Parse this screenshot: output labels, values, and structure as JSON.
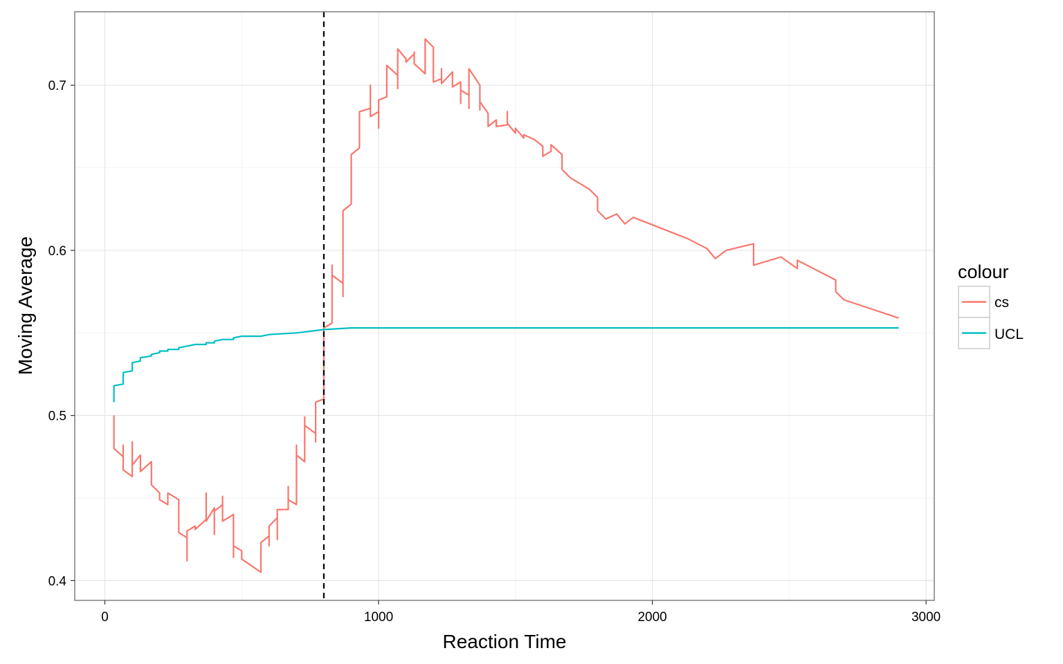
{
  "chart_data": {
    "type": "line",
    "xlabel": "Reaction Time",
    "ylabel": "Moving Average",
    "xlim": [
      -110,
      3030
    ],
    "ylim": [
      0.388,
      0.7445
    ],
    "x_ticks": [
      0,
      1000,
      2000,
      3000
    ],
    "x_tick_labels": [
      "0",
      "1000",
      "2000",
      "3000"
    ],
    "y_ticks": [
      0.4,
      0.5,
      0.6,
      0.7
    ],
    "y_tick_labels": [
      "0.4",
      "0.5",
      "0.6",
      "0.7"
    ],
    "grid": true,
    "legend": {
      "title": "colour",
      "position": "right"
    },
    "reference_line": {
      "x": 800,
      "style": "dashed",
      "color": "#000000"
    },
    "series": [
      {
        "name": "cs",
        "color": "#F8766D",
        "points": [
          [
            33,
            0.5
          ],
          [
            33,
            0.48
          ],
          [
            67,
            0.475
          ],
          [
            67,
            0.482
          ],
          [
            67,
            0.467
          ],
          [
            100,
            0.463
          ],
          [
            100,
            0.484
          ],
          [
            100,
            0.47
          ],
          [
            130,
            0.476
          ],
          [
            130,
            0.466
          ],
          [
            170,
            0.472
          ],
          [
            170,
            0.458
          ],
          [
            200,
            0.453
          ],
          [
            200,
            0.449
          ],
          [
            230,
            0.446
          ],
          [
            230,
            0.453
          ],
          [
            270,
            0.449
          ],
          [
            270,
            0.429
          ],
          [
            300,
            0.426
          ],
          [
            300,
            0.412
          ],
          [
            300,
            0.43
          ],
          [
            330,
            0.433
          ],
          [
            330,
            0.431
          ],
          [
            370,
            0.437
          ],
          [
            370,
            0.453
          ],
          [
            370,
            0.436
          ],
          [
            400,
            0.444
          ],
          [
            400,
            0.428
          ],
          [
            400,
            0.442
          ],
          [
            430,
            0.446
          ],
          [
            430,
            0.451
          ],
          [
            430,
            0.436
          ],
          [
            470,
            0.44
          ],
          [
            470,
            0.414
          ],
          [
            470,
            0.421
          ],
          [
            500,
            0.418
          ],
          [
            500,
            0.413
          ],
          [
            570,
            0.405
          ],
          [
            570,
            0.423
          ],
          [
            600,
            0.427
          ],
          [
            600,
            0.421
          ],
          [
            600,
            0.433
          ],
          [
            630,
            0.438
          ],
          [
            630,
            0.425
          ],
          [
            630,
            0.443
          ],
          [
            670,
            0.443
          ],
          [
            670,
            0.457
          ],
          [
            670,
            0.449
          ],
          [
            700,
            0.446
          ],
          [
            700,
            0.482
          ],
          [
            700,
            0.476
          ],
          [
            730,
            0.472
          ],
          [
            730,
            0.499
          ],
          [
            730,
            0.494
          ],
          [
            770,
            0.489
          ],
          [
            770,
            0.484
          ],
          [
            770,
            0.508
          ],
          [
            800,
            0.51
          ],
          [
            800,
            0.53
          ],
          [
            800,
            0.553
          ],
          [
            830,
            0.556
          ],
          [
            830,
            0.591
          ],
          [
            830,
            0.585
          ],
          [
            870,
            0.58
          ],
          [
            870,
            0.572
          ],
          [
            870,
            0.624
          ],
          [
            900,
            0.628
          ],
          [
            900,
            0.658
          ],
          [
            930,
            0.662
          ],
          [
            930,
            0.684
          ],
          [
            970,
            0.686
          ],
          [
            970,
            0.7
          ],
          [
            970,
            0.681
          ],
          [
            1000,
            0.684
          ],
          [
            1000,
            0.674
          ],
          [
            1000,
            0.691
          ],
          [
            1030,
            0.693
          ],
          [
            1030,
            0.712
          ],
          [
            1070,
            0.706
          ],
          [
            1070,
            0.698
          ],
          [
            1070,
            0.722
          ],
          [
            1100,
            0.716
          ],
          [
            1100,
            0.714
          ],
          [
            1130,
            0.719
          ],
          [
            1130,
            0.72
          ],
          [
            1130,
            0.713
          ],
          [
            1170,
            0.707
          ],
          [
            1170,
            0.728
          ],
          [
            1200,
            0.723
          ],
          [
            1200,
            0.702
          ],
          [
            1230,
            0.704
          ],
          [
            1230,
            0.71
          ],
          [
            1230,
            0.701
          ],
          [
            1270,
            0.708
          ],
          [
            1270,
            0.699
          ],
          [
            1300,
            0.702
          ],
          [
            1300,
            0.689
          ],
          [
            1300,
            0.697
          ],
          [
            1330,
            0.694
          ],
          [
            1330,
            0.686
          ],
          [
            1330,
            0.71
          ],
          [
            1370,
            0.7
          ],
          [
            1370,
            0.685
          ],
          [
            1370,
            0.69
          ],
          [
            1400,
            0.683
          ],
          [
            1400,
            0.675
          ],
          [
            1430,
            0.679
          ],
          [
            1430,
            0.675
          ],
          [
            1470,
            0.676
          ],
          [
            1470,
            0.684
          ],
          [
            1470,
            0.677
          ],
          [
            1500,
            0.671
          ],
          [
            1500,
            0.674
          ],
          [
            1530,
            0.668
          ],
          [
            1530,
            0.67
          ],
          [
            1570,
            0.667
          ],
          [
            1600,
            0.663
          ],
          [
            1600,
            0.657
          ],
          [
            1630,
            0.66
          ],
          [
            1630,
            0.664
          ],
          [
            1670,
            0.658
          ],
          [
            1670,
            0.649
          ],
          [
            1700,
            0.644
          ],
          [
            1770,
            0.637
          ],
          [
            1800,
            0.632
          ],
          [
            1800,
            0.624
          ],
          [
            1830,
            0.619
          ],
          [
            1870,
            0.622
          ],
          [
            1900,
            0.616
          ],
          [
            1930,
            0.62
          ],
          [
            2130,
            0.607
          ],
          [
            2200,
            0.601
          ],
          [
            2230,
            0.595
          ],
          [
            2270,
            0.6
          ],
          [
            2370,
            0.604
          ],
          [
            2370,
            0.591
          ],
          [
            2470,
            0.596
          ],
          [
            2530,
            0.589
          ],
          [
            2530,
            0.594
          ],
          [
            2670,
            0.582
          ],
          [
            2670,
            0.575
          ],
          [
            2700,
            0.57
          ],
          [
            2900,
            0.559
          ]
        ]
      },
      {
        "name": "UCL",
        "color": "#00BFC4",
        "points": [
          [
            33,
            0.508
          ],
          [
            33,
            0.518
          ],
          [
            67,
            0.519
          ],
          [
            67,
            0.526
          ],
          [
            100,
            0.527
          ],
          [
            100,
            0.532
          ],
          [
            130,
            0.533
          ],
          [
            130,
            0.535
          ],
          [
            170,
            0.536
          ],
          [
            170,
            0.537
          ],
          [
            200,
            0.538
          ],
          [
            200,
            0.539
          ],
          [
            230,
            0.539
          ],
          [
            230,
            0.54
          ],
          [
            270,
            0.54
          ],
          [
            270,
            0.541
          ],
          [
            300,
            0.542
          ],
          [
            300,
            0.542
          ],
          [
            330,
            0.543
          ],
          [
            370,
            0.543
          ],
          [
            370,
            0.544
          ],
          [
            400,
            0.544
          ],
          [
            400,
            0.545
          ],
          [
            430,
            0.546
          ],
          [
            470,
            0.546
          ],
          [
            470,
            0.547
          ],
          [
            500,
            0.548
          ],
          [
            570,
            0.548
          ],
          [
            600,
            0.549
          ],
          [
            700,
            0.55
          ],
          [
            800,
            0.552
          ],
          [
            900,
            0.553
          ],
          [
            1200,
            0.553
          ],
          [
            2900,
            0.553
          ]
        ]
      }
    ]
  }
}
